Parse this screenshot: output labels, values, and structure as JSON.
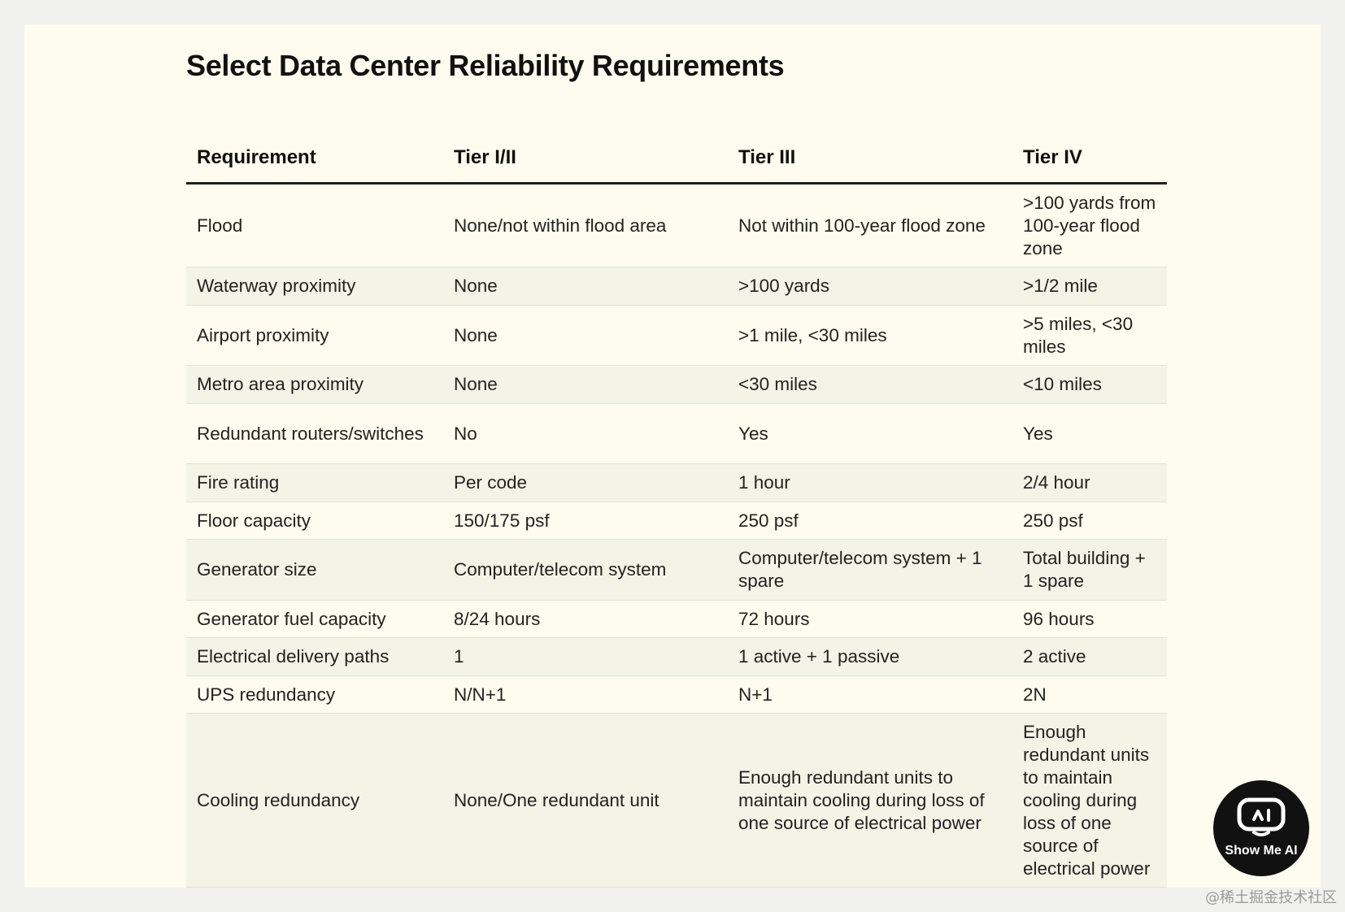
{
  "title": "Select Data Center Reliability Requirements",
  "table": {
    "headers": [
      "Requirement",
      "Tier I/II",
      "Tier III",
      "Tier IV"
    ],
    "rows": [
      [
        "Flood",
        "None/not within flood area",
        "Not within 100-year flood zone",
        ">100 yards from 100-year flood zone"
      ],
      [
        "Waterway proximity",
        "None",
        ">100 yards",
        ">1/2 mile"
      ],
      [
        "Airport proximity",
        "None",
        ">1 mile, <30 miles",
        ">5 miles, <30 miles"
      ],
      [
        "Metro area proximity",
        "None",
        "<30 miles",
        "<10 miles"
      ],
      [
        "Redundant routers/switches",
        "No",
        "Yes",
        "Yes"
      ],
      [
        "Fire rating",
        "Per code",
        "1 hour",
        "2/4 hour"
      ],
      [
        "Floor capacity",
        "150/175 psf",
        "250 psf",
        "250 psf"
      ],
      [
        "Generator size",
        "Computer/telecom system",
        "Computer/telecom system + 1 spare",
        "Total building + 1 spare"
      ],
      [
        "Generator fuel capacity",
        "8/24 hours",
        "72 hours",
        "96 hours"
      ],
      [
        "Electrical delivery paths",
        "1",
        "1 active + 1 passive",
        "2 active"
      ],
      [
        "UPS redundancy",
        "N/N+1",
        "N+1",
        "2N"
      ],
      [
        "Cooling redundancy",
        "None/One redundant unit",
        "Enough redundant units to maintain cooling during loss of one source of electrical power",
        "Enough redundant units to maintain cooling during loss of one source of electrical power"
      ]
    ]
  },
  "logo": {
    "text": "Show Me AI",
    "icon": "robot-face-icon"
  },
  "watermark": "@稀土掘金技术社区",
  "colors": {
    "page_background": "#f1f1ef",
    "card_background": "#fdfcee",
    "row_stripe": "#f3f3e6",
    "header_rule": "#1f1f1f",
    "logo_background": "#111111"
  }
}
